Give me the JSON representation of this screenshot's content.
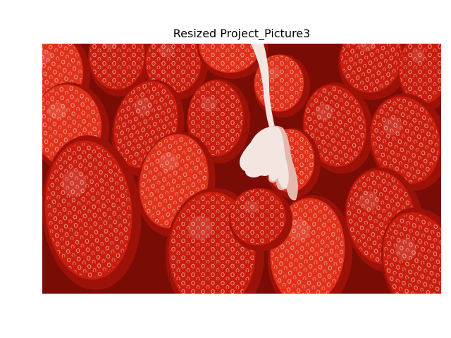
{
  "figure": {
    "title": "Resized Project_Picture3"
  },
  "image": {
    "subject": "strawberries-with-cream-drip",
    "palette": {
      "background": "#7a0c06",
      "berry_dark": "#9c1208",
      "berry": "#c81d0e",
      "berry_light": "#e0301a",
      "seed": "#f4c8b8",
      "cream": "#f3e6e1",
      "cream_shadow": "#e5b8ae"
    }
  }
}
